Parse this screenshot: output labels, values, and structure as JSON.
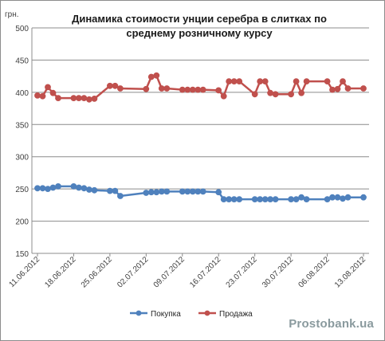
{
  "chart_data": {
    "type": "line",
    "title_line1": "Динамика стоимости унции серебра в слитках по",
    "title_line2": "среднему розничному курсу",
    "unit_label": "грн.",
    "ylim": [
      150,
      500
    ],
    "yticks": [
      150,
      200,
      250,
      300,
      350,
      400,
      450,
      500
    ],
    "xlim": [
      "2012-06-11",
      "2012-08-13"
    ],
    "xticks": [
      "11.06.2012",
      "18.06.2012",
      "25.06.2012",
      "02.07.2012",
      "09.07.2012",
      "16.07.2012",
      "23.07.2012",
      "30.07.2012",
      "06.08.2012",
      "13.08.2012"
    ],
    "grid": "horizontal",
    "legend_position": "bottom",
    "series": [
      {
        "name": "Покупка",
        "color": "#4f81bd",
        "points": [
          [
            "2012-06-11",
            251
          ],
          [
            "2012-06-12",
            251
          ],
          [
            "2012-06-13",
            250
          ],
          [
            "2012-06-14",
            252
          ],
          [
            "2012-06-15",
            254
          ],
          [
            "2012-06-18",
            254
          ],
          [
            "2012-06-19",
            252
          ],
          [
            "2012-06-20",
            251
          ],
          [
            "2012-06-21",
            249
          ],
          [
            "2012-06-22",
            248
          ],
          [
            "2012-06-25",
            247
          ],
          [
            "2012-06-26",
            247
          ],
          [
            "2012-06-27",
            239
          ],
          [
            "2012-07-02",
            244
          ],
          [
            "2012-07-03",
            245
          ],
          [
            "2012-07-04",
            245
          ],
          [
            "2012-07-05",
            246
          ],
          [
            "2012-07-06",
            246
          ],
          [
            "2012-07-09",
            246
          ],
          [
            "2012-07-10",
            246
          ],
          [
            "2012-07-11",
            246
          ],
          [
            "2012-07-12",
            246
          ],
          [
            "2012-07-13",
            246
          ],
          [
            "2012-07-16",
            245
          ],
          [
            "2012-07-17",
            234
          ],
          [
            "2012-07-18",
            234
          ],
          [
            "2012-07-19",
            234
          ],
          [
            "2012-07-20",
            234
          ],
          [
            "2012-07-23",
            234
          ],
          [
            "2012-07-24",
            234
          ],
          [
            "2012-07-25",
            234
          ],
          [
            "2012-07-26",
            234
          ],
          [
            "2012-07-27",
            234
          ],
          [
            "2012-07-30",
            234
          ],
          [
            "2012-07-31",
            234
          ],
          [
            "2012-08-01",
            237
          ],
          [
            "2012-08-02",
            234
          ],
          [
            "2012-08-06",
            234
          ],
          [
            "2012-08-07",
            237
          ],
          [
            "2012-08-08",
            237
          ],
          [
            "2012-08-09",
            235
          ],
          [
            "2012-08-10",
            237
          ],
          [
            "2012-08-13",
            237
          ]
        ]
      },
      {
        "name": "Продажа",
        "color": "#c0504d",
        "points": [
          [
            "2012-06-11",
            395
          ],
          [
            "2012-06-12",
            394
          ],
          [
            "2012-06-13",
            408
          ],
          [
            "2012-06-14",
            399
          ],
          [
            "2012-06-15",
            391
          ],
          [
            "2012-06-18",
            391
          ],
          [
            "2012-06-19",
            391
          ],
          [
            "2012-06-20",
            391
          ],
          [
            "2012-06-21",
            389
          ],
          [
            "2012-06-22",
            390
          ],
          [
            "2012-06-25",
            410
          ],
          [
            "2012-06-26",
            410
          ],
          [
            "2012-06-27",
            406
          ],
          [
            "2012-07-02",
            405
          ],
          [
            "2012-07-03",
            424
          ],
          [
            "2012-07-04",
            426
          ],
          [
            "2012-07-05",
            406
          ],
          [
            "2012-07-06",
            406
          ],
          [
            "2012-07-09",
            404
          ],
          [
            "2012-07-10",
            404
          ],
          [
            "2012-07-11",
            404
          ],
          [
            "2012-07-12",
            404
          ],
          [
            "2012-07-13",
            404
          ],
          [
            "2012-07-16",
            403
          ],
          [
            "2012-07-17",
            394
          ],
          [
            "2012-07-18",
            417
          ],
          [
            "2012-07-19",
            417
          ],
          [
            "2012-07-20",
            417
          ],
          [
            "2012-07-23",
            397
          ],
          [
            "2012-07-24",
            417
          ],
          [
            "2012-07-25",
            417
          ],
          [
            "2012-07-26",
            399
          ],
          [
            "2012-07-27",
            397
          ],
          [
            "2012-07-30",
            397
          ],
          [
            "2012-07-31",
            417
          ],
          [
            "2012-08-01",
            399
          ],
          [
            "2012-08-02",
            417
          ],
          [
            "2012-08-06",
            417
          ],
          [
            "2012-08-07",
            404
          ],
          [
            "2012-08-08",
            405
          ],
          [
            "2012-08-09",
            417
          ],
          [
            "2012-08-10",
            406
          ],
          [
            "2012-08-13",
            406
          ]
        ]
      }
    ]
  },
  "watermark": "Prostobank.ua"
}
